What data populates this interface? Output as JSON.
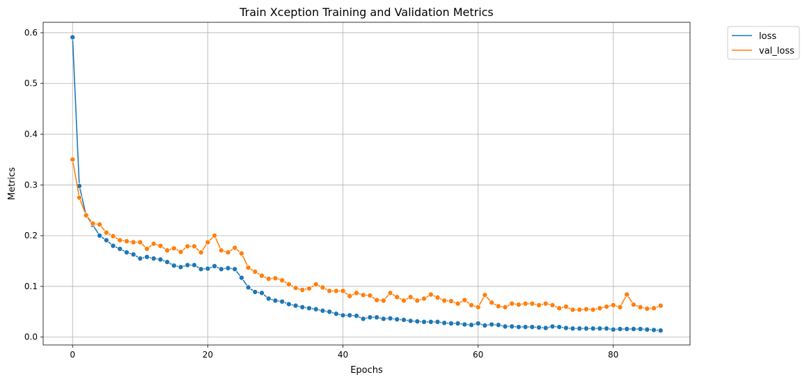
{
  "chart_data": {
    "type": "line",
    "title": "Train Xception Training and Validation Metrics",
    "xlabel": "Epochs",
    "ylabel": "Metrics",
    "xlim": [
      -4.35,
      91.35
    ],
    "ylim": [
      -0.0155,
      0.6205
    ],
    "xticks": [
      0,
      20,
      40,
      60,
      80
    ],
    "yticks": [
      0.0,
      0.1,
      0.2,
      0.3,
      0.4,
      0.5,
      0.6
    ],
    "xtick_labels": [
      "0",
      "20",
      "40",
      "60",
      "80"
    ],
    "ytick_labels": [
      "0.0",
      "0.1",
      "0.2",
      "0.3",
      "0.4",
      "0.5",
      "0.6"
    ],
    "grid": true,
    "legend_position": "outside-top-right",
    "series": [
      {
        "name": "loss",
        "color": "#1f77b4",
        "marker": "circle",
        "values": [
          0.591,
          0.298,
          0.24,
          0.221,
          0.2,
          0.191,
          0.18,
          0.174,
          0.167,
          0.163,
          0.155,
          0.158,
          0.155,
          0.153,
          0.148,
          0.141,
          0.138,
          0.142,
          0.142,
          0.134,
          0.135,
          0.14,
          0.134,
          0.136,
          0.134,
          0.117,
          0.098,
          0.089,
          0.087,
          0.076,
          0.072,
          0.07,
          0.065,
          0.062,
          0.059,
          0.057,
          0.055,
          0.052,
          0.05,
          0.046,
          0.043,
          0.043,
          0.042,
          0.036,
          0.039,
          0.039,
          0.036,
          0.037,
          0.035,
          0.034,
          0.032,
          0.031,
          0.03,
          0.03,
          0.03,
          0.028,
          0.027,
          0.027,
          0.025,
          0.024,
          0.027,
          0.023,
          0.025,
          0.024,
          0.021,
          0.021,
          0.02,
          0.02,
          0.02,
          0.019,
          0.018,
          0.021,
          0.02,
          0.018,
          0.017,
          0.017,
          0.017,
          0.017,
          0.017,
          0.017,
          0.015,
          0.016,
          0.016,
          0.016,
          0.016,
          0.015,
          0.014,
          0.013
        ]
      },
      {
        "name": "val_loss",
        "color": "#ff7f0e",
        "marker": "circle",
        "values": [
          0.35,
          0.275,
          0.24,
          0.224,
          0.222,
          0.206,
          0.199,
          0.191,
          0.189,
          0.187,
          0.187,
          0.174,
          0.184,
          0.18,
          0.171,
          0.175,
          0.168,
          0.179,
          0.179,
          0.167,
          0.187,
          0.2,
          0.171,
          0.167,
          0.176,
          0.165,
          0.137,
          0.129,
          0.121,
          0.115,
          0.116,
          0.112,
          0.104,
          0.097,
          0.093,
          0.096,
          0.104,
          0.098,
          0.091,
          0.091,
          0.091,
          0.081,
          0.087,
          0.083,
          0.082,
          0.073,
          0.072,
          0.087,
          0.079,
          0.072,
          0.079,
          0.072,
          0.076,
          0.084,
          0.078,
          0.072,
          0.071,
          0.066,
          0.073,
          0.063,
          0.059,
          0.083,
          0.068,
          0.061,
          0.059,
          0.066,
          0.064,
          0.066,
          0.066,
          0.063,
          0.066,
          0.063,
          0.057,
          0.06,
          0.054,
          0.054,
          0.055,
          0.054,
          0.057,
          0.06,
          0.063,
          0.059,
          0.084,
          0.064,
          0.059,
          0.056,
          0.057,
          0.062
        ]
      }
    ]
  }
}
